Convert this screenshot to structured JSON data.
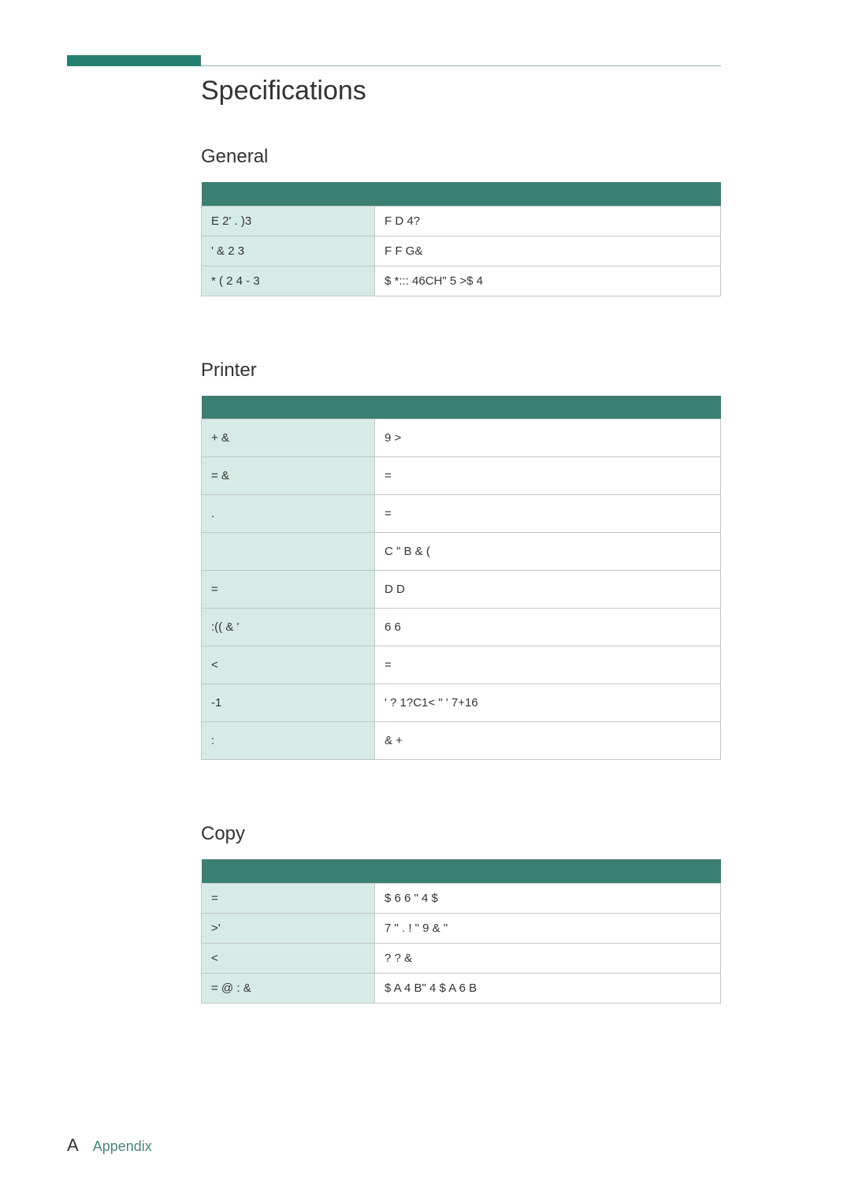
{
  "page": {
    "title": "Specifications",
    "appendix_letter": "A",
    "appendix_label": "Appendix"
  },
  "colors": {
    "accent_bar": "#268071",
    "table_header": "#3b7e73",
    "first_col_bg": "#d7ebe6",
    "border": "#bfc9c7",
    "rule": "#8fb8b0",
    "footer_label": "#4b8578"
  },
  "sections": {
    "general": {
      "title": "General",
      "rows": [
        {
          "label": "E 2'  .  )3",
          "value": "F   D  4?"
        },
        {
          "label": "' &  2       3",
          "value": "F F G&"
        },
        {
          "label": "*   (      2  4  -  3",
          "value": "$ *::: 46CH\" 5 >$ 4"
        }
      ]
    },
    "printer": {
      "title": "Printer",
      "rows": [
        {
          "label": "+    &",
          "value": "9   >"
        },
        {
          "label": "=    &",
          "value": "="
        },
        {
          "label": ".",
          "value": "="
        },
        {
          "label": "",
          "value": "C     \" B    &     ("
        },
        {
          "label": "=",
          "value": "D   D"
        },
        {
          "label": ":((       & '",
          "value": "6 6"
        },
        {
          "label": "<",
          "value": "="
        },
        {
          "label": "-1",
          "value": "'     ? 1?C1< \" '    7+16"
        },
        {
          "label": ":",
          "value": "&   +"
        }
      ]
    },
    "copy": {
      "title": "Copy",
      "rows": [
        {
          "label": "=",
          "value": "$ 6   6   \"   4 $"
        },
        {
          "label": ">'",
          "value": "7   \" .  !  \" 9 &   \""
        },
        {
          "label": "<",
          "value": "? ?   &"
        },
        {
          "label": "=   @ :  &",
          "value": "$   A 4  B\"   4 $   A 6  B"
        }
      ]
    }
  }
}
